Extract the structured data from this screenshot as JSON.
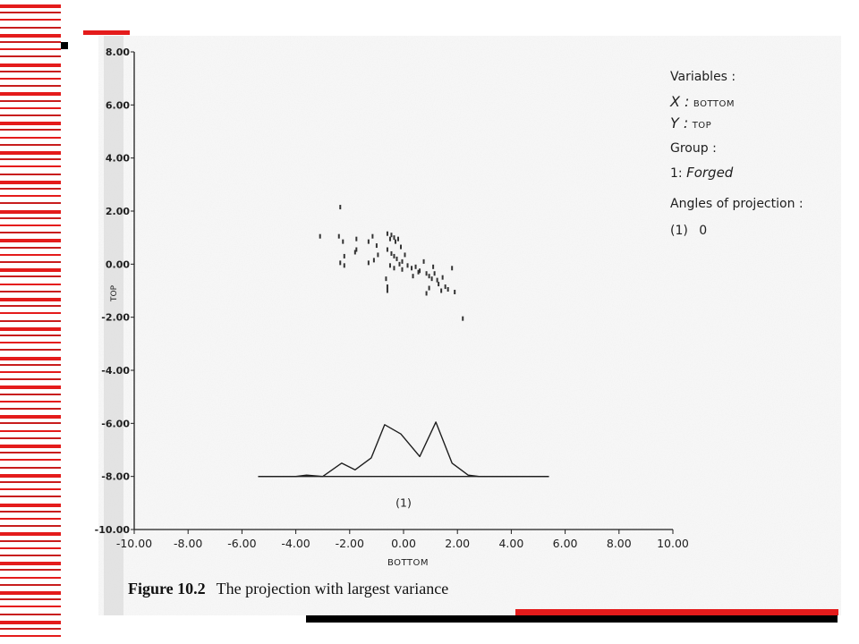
{
  "caption": {
    "figure_number": "Figure 10.2",
    "text": "The projection with largest variance"
  },
  "legend": {
    "variables_heading": "Variables :",
    "x_key": "X :",
    "x_value": "BOTTOM",
    "y_key": "Y :",
    "y_value": "TOP",
    "group_heading": "Group :",
    "group_key": "1:",
    "group_value": "Forged",
    "angles_heading": "Angles of projection :",
    "angle_key": "(1)",
    "angle_value": "0"
  },
  "colors": {
    "accent": "#e41b1b",
    "ink": "#1e1e1e"
  },
  "chart_data": {
    "type": "scatter",
    "title": "",
    "xlabel": "BOTTOM",
    "ylabel": "TOP",
    "xlim": [
      -10,
      10
    ],
    "ylim": [
      -10,
      8
    ],
    "x_ticks": [
      "-10.00",
      "-8.00",
      "-6.00",
      "-4.00",
      "-2.00",
      "0.00",
      "2.00",
      "4.00",
      "6.00",
      "8.00",
      "10.00"
    ],
    "x_tick_values": [
      -10,
      -8,
      -6,
      -4,
      -2,
      0,
      2,
      4,
      6,
      8,
      10
    ],
    "y_ticks": [
      "8.00",
      "6.00",
      "4.00",
      "2.00",
      "0.00",
      "-2.00",
      "-4.00",
      "-6.00",
      "-8.00",
      "-10.00"
    ],
    "y_tick_values": [
      8,
      6,
      4,
      2,
      0,
      -2,
      -4,
      -6,
      -8,
      -10
    ],
    "grid": false,
    "series": [
      {
        "name": "Forged",
        "points": [
          [
            -2.35,
            2.15
          ],
          [
            -3.1,
            1.05
          ],
          [
            -2.4,
            1.05
          ],
          [
            -2.25,
            0.85
          ],
          [
            -1.75,
            0.95
          ],
          [
            -1.75,
            0.55
          ],
          [
            -1.8,
            0.45
          ],
          [
            -2.2,
            0.3
          ],
          [
            -2.35,
            0.05
          ],
          [
            -2.2,
            -0.05
          ],
          [
            -1.3,
            0.85
          ],
          [
            -1.15,
            1.05
          ],
          [
            -1.0,
            0.7
          ],
          [
            -0.95,
            0.35
          ],
          [
            -1.1,
            0.15
          ],
          [
            -1.3,
            0.05
          ],
          [
            -0.6,
            1.15
          ],
          [
            -0.5,
            0.95
          ],
          [
            -0.45,
            1.1
          ],
          [
            -0.35,
            1.0
          ],
          [
            -0.3,
            0.85
          ],
          [
            -0.2,
            0.95
          ],
          [
            -0.1,
            0.65
          ],
          [
            -0.6,
            0.55
          ],
          [
            -0.45,
            0.4
          ],
          [
            -0.35,
            0.3
          ],
          [
            -0.25,
            0.2
          ],
          [
            -0.15,
            0.0
          ],
          [
            -0.05,
            0.1
          ],
          [
            0.05,
            0.35
          ],
          [
            -0.5,
            -0.05
          ],
          [
            -0.35,
            -0.15
          ],
          [
            -0.65,
            -0.55
          ],
          [
            -0.6,
            -0.85
          ],
          [
            -0.6,
            -1.0
          ],
          [
            0.15,
            -0.05
          ],
          [
            0.3,
            -0.15
          ],
          [
            0.45,
            -0.1
          ],
          [
            0.6,
            -0.25
          ],
          [
            0.75,
            0.1
          ],
          [
            0.85,
            -0.35
          ],
          [
            0.95,
            -0.45
          ],
          [
            1.05,
            -0.55
          ],
          [
            1.15,
            -0.35
          ],
          [
            1.25,
            -0.6
          ],
          [
            1.3,
            -0.75
          ],
          [
            1.45,
            -0.5
          ],
          [
            1.55,
            -0.85
          ],
          [
            1.65,
            -0.95
          ],
          [
            1.4,
            -1.0
          ],
          [
            0.95,
            -0.9
          ],
          [
            0.85,
            -1.1
          ],
          [
            1.1,
            -0.1
          ],
          [
            1.8,
            -0.15
          ],
          [
            1.9,
            -1.05
          ],
          [
            0.55,
            -0.3
          ],
          [
            0.35,
            -0.45
          ],
          [
            -0.05,
            -0.2
          ],
          [
            2.2,
            -2.05
          ]
        ]
      }
    ],
    "projection_curves": [
      {
        "label": "(1)",
        "baseline": -8,
        "points": [
          [
            -5.4,
            -8.0
          ],
          [
            -4.0,
            -8.0
          ],
          [
            -3.6,
            -7.95
          ],
          [
            -3.0,
            -8.0
          ],
          [
            -2.3,
            -7.5
          ],
          [
            -1.8,
            -7.75
          ],
          [
            -1.2,
            -7.3
          ],
          [
            -0.7,
            -6.05
          ],
          [
            -0.1,
            -6.4
          ],
          [
            0.6,
            -7.25
          ],
          [
            1.2,
            -5.95
          ],
          [
            1.8,
            -7.5
          ],
          [
            2.4,
            -7.95
          ],
          [
            2.8,
            -8.0
          ],
          [
            5.4,
            -8.0
          ]
        ]
      }
    ]
  }
}
